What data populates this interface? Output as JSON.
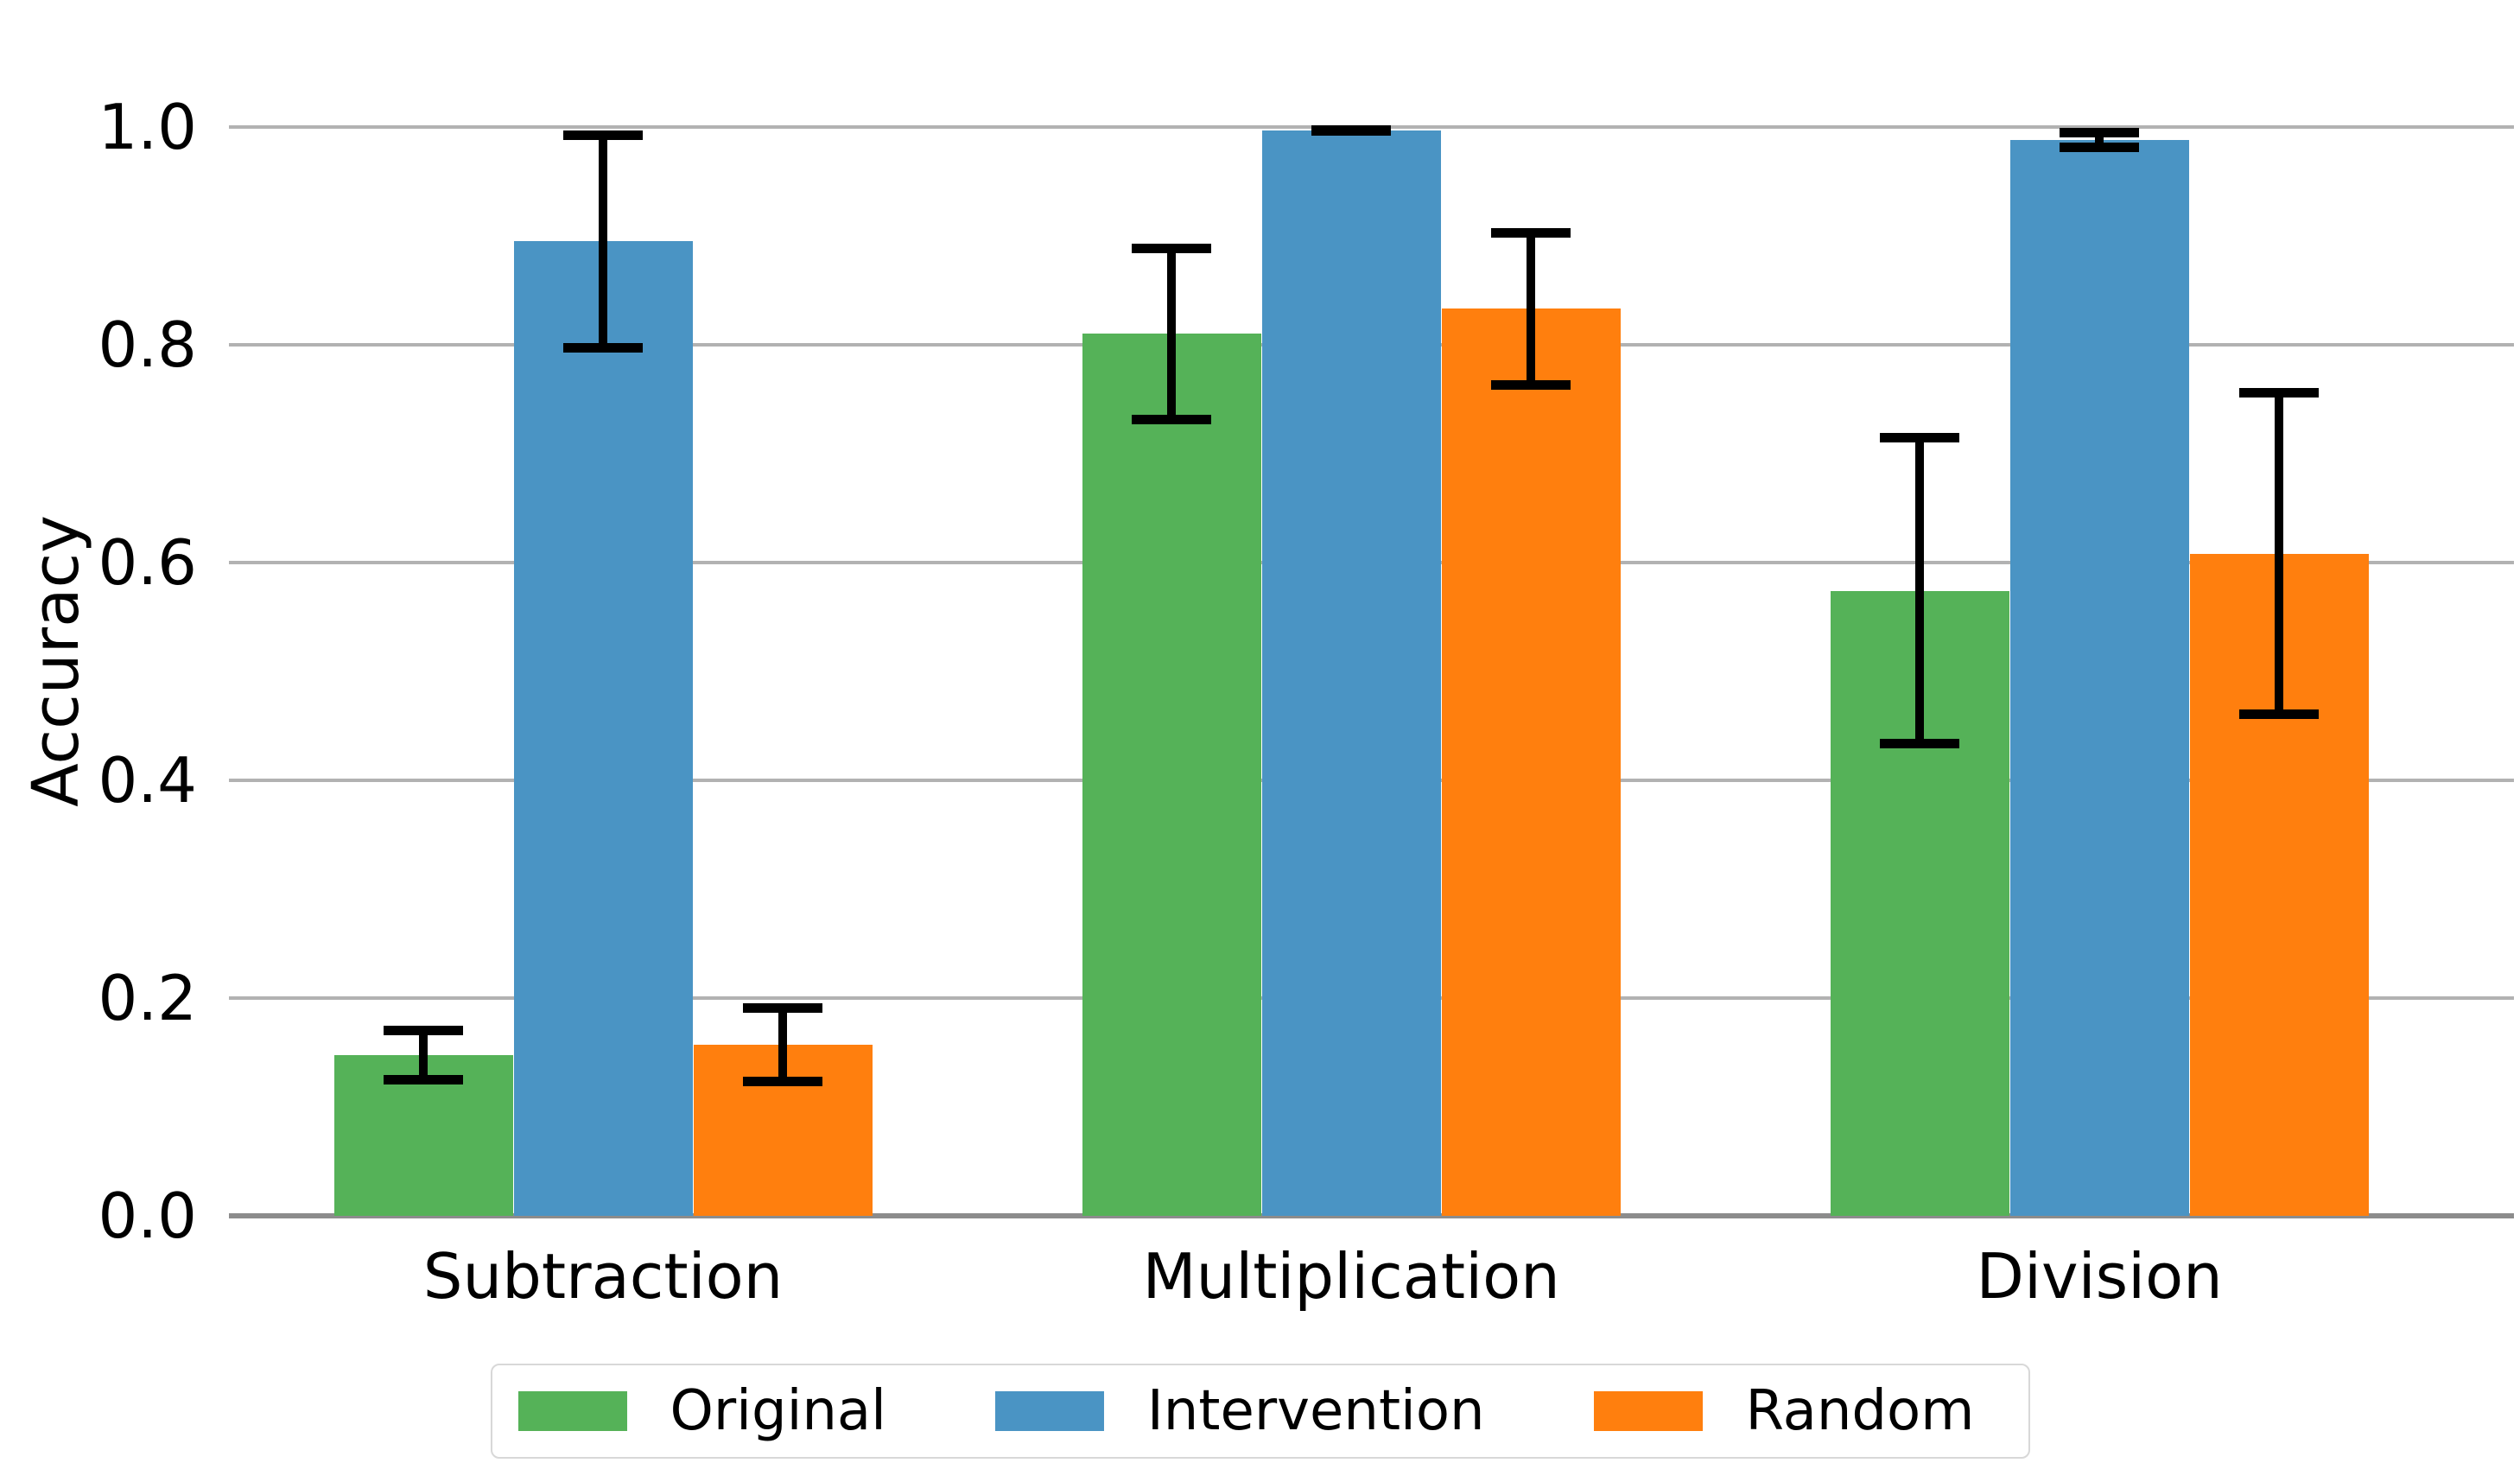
{
  "chart_data": {
    "type": "bar",
    "title": "",
    "xlabel": "",
    "ylabel": "Accuracy",
    "categories": [
      "Subtraction",
      "Multiplication",
      "Division"
    ],
    "series": [
      {
        "name": "Original",
        "color": "#55b258",
        "values": [
          0.148,
          0.81,
          0.574
        ],
        "errors": [
          0.027,
          0.083,
          0.145
        ]
      },
      {
        "name": "Intervention",
        "color": "#4a94c4",
        "values": [
          0.895,
          0.997,
          0.988
        ],
        "errors": [
          0.102,
          0.004,
          0.011
        ]
      },
      {
        "name": "Random",
        "color": "#ff7f0e",
        "values": [
          0.157,
          0.833,
          0.608
        ],
        "errors": [
          0.038,
          0.074,
          0.152
        ]
      }
    ],
    "ylim": [
      0.0,
      1.0
    ],
    "yticks": [
      0.0,
      0.2,
      0.4,
      0.6,
      0.8,
      1.0
    ],
    "ytick_labels": [
      "0.0",
      "0.2",
      "0.4",
      "0.6",
      "0.8",
      "1.0"
    ],
    "grid": true,
    "grid_color": "#b2b2b2",
    "axis_line_color": "#8c8c8c",
    "error_bar_color": "#000000",
    "legend_position": "bottom-center"
  }
}
